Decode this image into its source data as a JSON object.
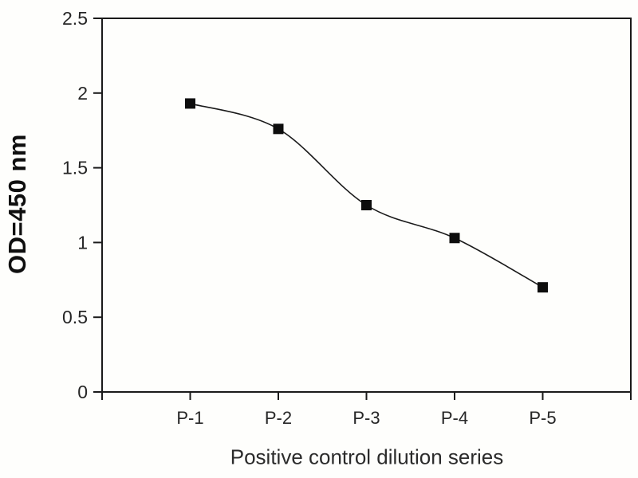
{
  "chart_data": {
    "type": "line",
    "title": "",
    "xlabel": "Positive control dilution series",
    "ylabel": "OD=450 nm",
    "categories": [
      "P-1",
      "P-2",
      "P-3",
      "P-4",
      "P-5"
    ],
    "values": [
      1.93,
      1.76,
      1.25,
      1.03,
      0.7
    ],
    "ylim": [
      0,
      2.5
    ],
    "ytick_step": 0.5,
    "ytick_labels": [
      "0",
      "0.5",
      "1",
      "1.5",
      "2",
      "2.5"
    ],
    "grid": false,
    "legend": false,
    "marker": "square",
    "line_style": "smooth",
    "colors": {
      "line": "#1a1a1a",
      "marker": "#0d0d0d",
      "frame": "#1a1a1a",
      "tick_text": "#262626"
    }
  }
}
